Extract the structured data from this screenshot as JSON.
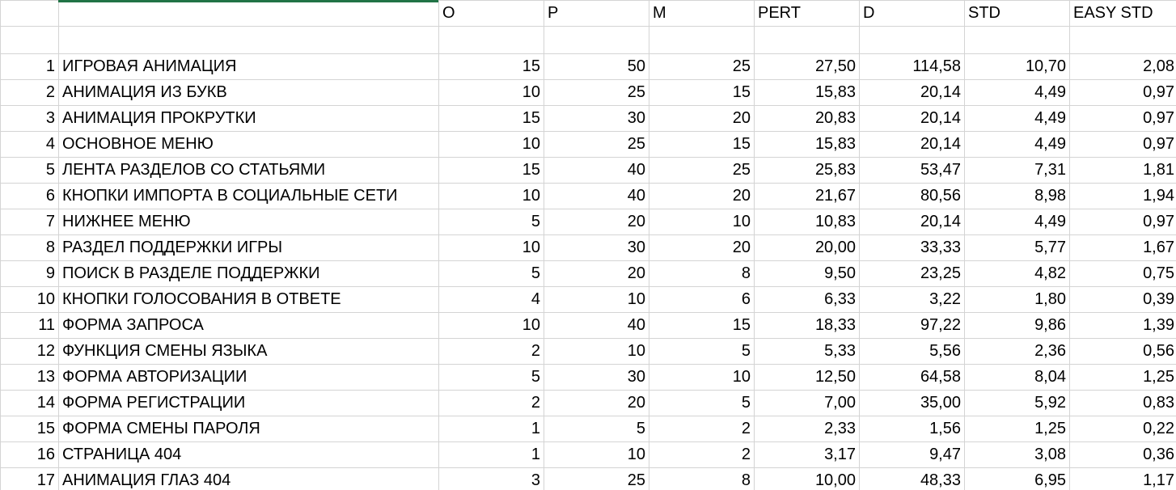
{
  "headers": [
    "",
    "",
    "O",
    "P",
    "M",
    "PERT",
    "D",
    "STD",
    "EASY STD"
  ],
  "rows": [
    [
      "1",
      "ИГРОВАЯ АНИМАЦИЯ",
      "15",
      "50",
      "25",
      "27,50",
      "114,58",
      "10,70",
      "2,08"
    ],
    [
      "2",
      "АНИМАЦИЯ ИЗ БУКВ",
      "10",
      "25",
      "15",
      "15,83",
      "20,14",
      "4,49",
      "0,97"
    ],
    [
      "3",
      "АНИМАЦИЯ ПРОКРУТКИ",
      "15",
      "30",
      "20",
      "20,83",
      "20,14",
      "4,49",
      "0,97"
    ],
    [
      "4",
      "ОСНОВНОЕ МЕНЮ",
      "10",
      "25",
      "15",
      "15,83",
      "20,14",
      "4,49",
      "0,97"
    ],
    [
      "5",
      "ЛЕНТА РАЗДЕЛОВ СО СТАТЬЯМИ",
      "15",
      "40",
      "25",
      "25,83",
      "53,47",
      "7,31",
      "1,81"
    ],
    [
      "6",
      "КНОПКИ ИМПОРТА В СОЦИАЛЬНЫЕ СЕТИ",
      "10",
      "40",
      "20",
      "21,67",
      "80,56",
      "8,98",
      "1,94"
    ],
    [
      "7",
      "НИЖНЕЕ МЕНЮ",
      "5",
      "20",
      "10",
      "10,83",
      "20,14",
      "4,49",
      "0,97"
    ],
    [
      "8",
      "РАЗДЕЛ ПОДДЕРЖКИ ИГРЫ",
      "10",
      "30",
      "20",
      "20,00",
      "33,33",
      "5,77",
      "1,67"
    ],
    [
      "9",
      "ПОИСК В РАЗДЕЛЕ ПОДДЕРЖКИ",
      "5",
      "20",
      "8",
      "9,50",
      "23,25",
      "4,82",
      "0,75"
    ],
    [
      "10",
      "КНОПКИ ГОЛОСОВАНИЯ В ОТВЕТЕ",
      "4",
      "10",
      "6",
      "6,33",
      "3,22",
      "1,80",
      "0,39"
    ],
    [
      "11",
      "ФОРМА ЗАПРОСА",
      "10",
      "40",
      "15",
      "18,33",
      "97,22",
      "9,86",
      "1,39"
    ],
    [
      "12",
      "ФУНКЦИЯ СМЕНЫ ЯЗЫКА",
      "2",
      "10",
      "5",
      "5,33",
      "5,56",
      "2,36",
      "0,56"
    ],
    [
      "13",
      "ФОРМА АВТОРИЗАЦИИ",
      "5",
      "30",
      "10",
      "12,50",
      "64,58",
      "8,04",
      "1,25"
    ],
    [
      "14",
      "ФОРМА РЕГИСТРАЦИИ",
      "2",
      "20",
      "5",
      "7,00",
      "35,00",
      "5,92",
      "0,83"
    ],
    [
      "15",
      "ФОРМА СМЕНЫ ПАРОЛЯ",
      "1",
      "5",
      "2",
      "2,33",
      "1,56",
      "1,25",
      "0,22"
    ],
    [
      "16",
      "СТРАНИЦА 404",
      "1",
      "10",
      "2",
      "3,17",
      "9,47",
      "3,08",
      "0,36"
    ],
    [
      "17",
      "АНИМАЦИЯ ГЛАЗ 404",
      "3",
      "25",
      "8",
      "10,00",
      "48,33",
      "6,95",
      "1,17"
    ]
  ],
  "colors": {
    "gridline": "#d4d4d4",
    "selection": "#217346",
    "text": "#000000",
    "background": "#ffffff"
  }
}
